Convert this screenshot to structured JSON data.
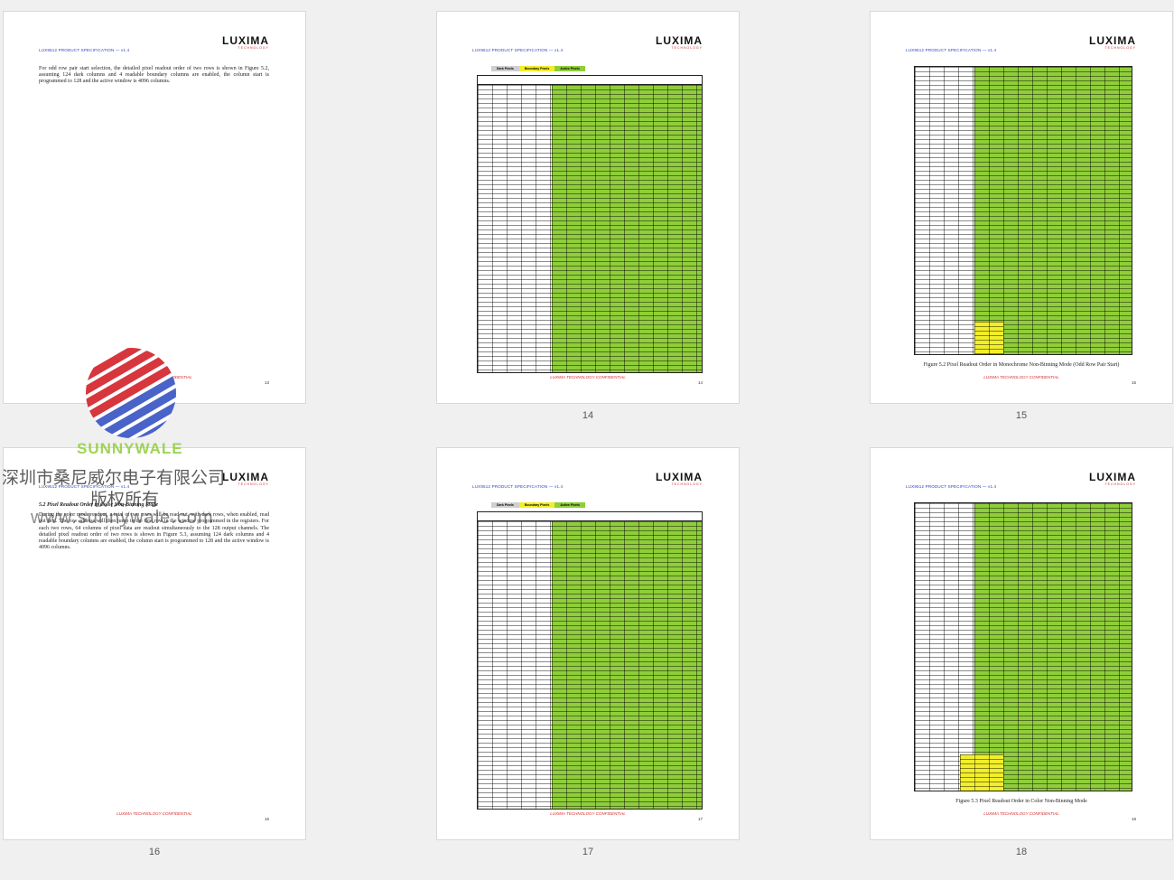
{
  "viewer": {
    "page_labels": [
      "13",
      "14",
      "15",
      "16",
      "17",
      "18"
    ]
  },
  "doc": {
    "header": "LUX9512 PRODUCT SPECIFICATION — v1.4",
    "logo": "LUXIMA",
    "logo_sub": "TECHNOLOGY",
    "footer": "LUXIMA TECHNOLOGY CONFIDENTIAL"
  },
  "pages": [
    {
      "num": "13",
      "text": "For odd row pair start selection, the detailed pixel readout order of two rows is shown in Figure 5.2, assuming 124 dark columns and 4 readable boundary columns are enabled, the column start is programmed to 128 and the active window is 4096 columns."
    },
    {
      "num": "14",
      "legend": [
        "Dark Pixels",
        "Boundary Pixels",
        "Active Pixels"
      ]
    },
    {
      "num": "15",
      "caption": "Figure 5.2 Pixel Readout Order in Monochrome Non-Binning Mode (Odd Row Pair Start)"
    },
    {
      "num": "16",
      "section": "5.2 Pixel Readout Order in Color Non-Binning Mode",
      "text": "During the color mode readout, a total of two rows will be read out, with dark rows, when enabled, read out first. The row address will then jump to the first row in the window programmed in the registers. For each two rows, 64 columns of pixel data are readout simultaneously to the 128 output channels. The detailed pixel readout order of two rows is shown in Figure 5.3, assuming 124 dark columns and 4 readable boundary columns are enabled, the column start is programmed to 128 and the active window is 4096 columns."
    },
    {
      "num": "17",
      "legend": [
        "Dark Pixels",
        "Boundary Pixels",
        "Active Pixels"
      ]
    },
    {
      "num": "18",
      "caption": "Figure 5.3 Pixel Readout Order in Color Non-Binning Mode"
    }
  ],
  "watermark": {
    "brand": "SUNNYWALE",
    "cn_line1": "深圳市桑尼威尔电子有限公司",
    "cn_line2": "版权所有",
    "url": "www.sunnywale.com"
  },
  "colors": {
    "active": "#8fce3a",
    "boundary": "#f2ee2a",
    "header_blue": "#2b3fbf",
    "footer_red": "#d42828"
  }
}
